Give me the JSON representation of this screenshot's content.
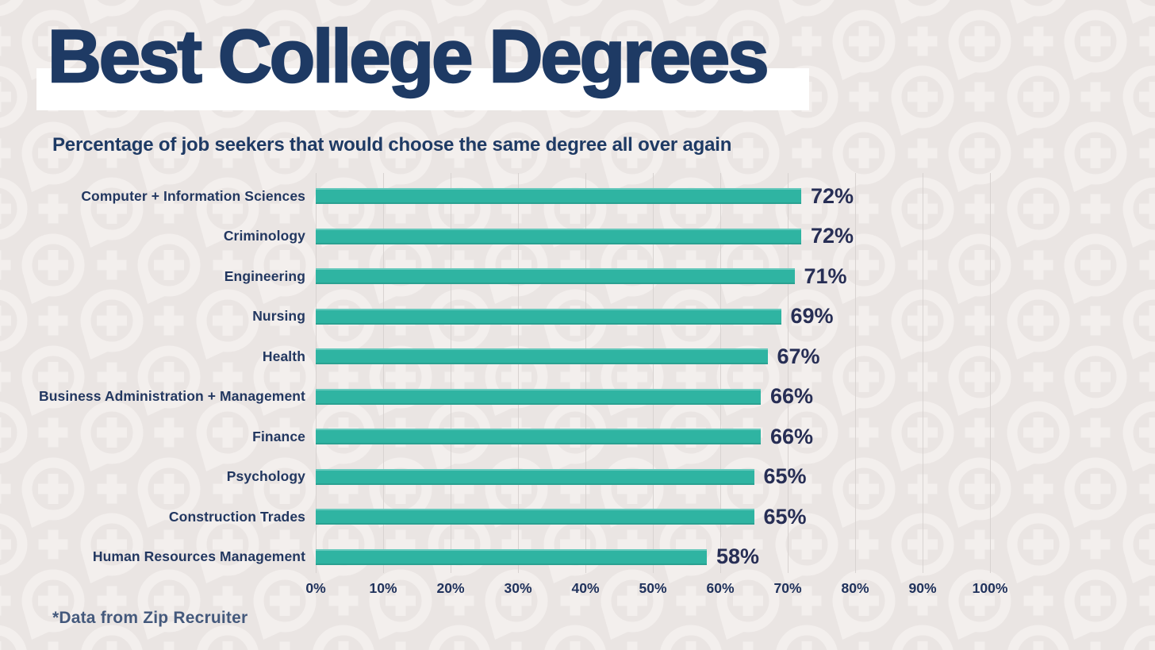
{
  "page": {
    "title": "Best College Degrees",
    "subtitle": "Percentage of job seekers that would choose the same degree all over again",
    "source_note": "*Data from Zip Recruiter"
  },
  "chart_data": {
    "type": "bar",
    "orientation": "horizontal",
    "title": "Best College Degrees",
    "subtitle": "Percentage of job seekers that would choose the same degree all over again",
    "source": "*Data from Zip Recruiter",
    "categories": [
      "Computer + Information Sciences",
      "Criminology",
      "Engineering",
      "Nursing",
      "Health",
      "Business Administration + Management",
      "Finance",
      "Psychology",
      "Construction Trades",
      "Human Resources Management"
    ],
    "values": [
      72,
      72,
      71,
      69,
      67,
      66,
      66,
      65,
      65,
      58
    ],
    "value_labels": [
      "72%",
      "72%",
      "71%",
      "69%",
      "67%",
      "66%",
      "66%",
      "65%",
      "65%",
      "58%"
    ],
    "xlabel": "",
    "ylabel": "",
    "xlim": [
      0,
      100
    ],
    "x_ticks": [
      "0%",
      "10%",
      "20%",
      "30%",
      "40%",
      "50%",
      "60%",
      "70%",
      "80%",
      "90%",
      "100%"
    ],
    "grid": "vertical-only",
    "legend": "none",
    "colors": {
      "bar": "#2fb4a2",
      "title_text": "#1e3a64",
      "label_text": "#223760",
      "value_text": "#272e55",
      "tick_text": "#20325c",
      "source_text": "#44597c",
      "background": "#eae5e3",
      "watermark_pattern": "#f3efed",
      "gridline": "#d8d3d1",
      "title_band": "#ffffff"
    }
  }
}
